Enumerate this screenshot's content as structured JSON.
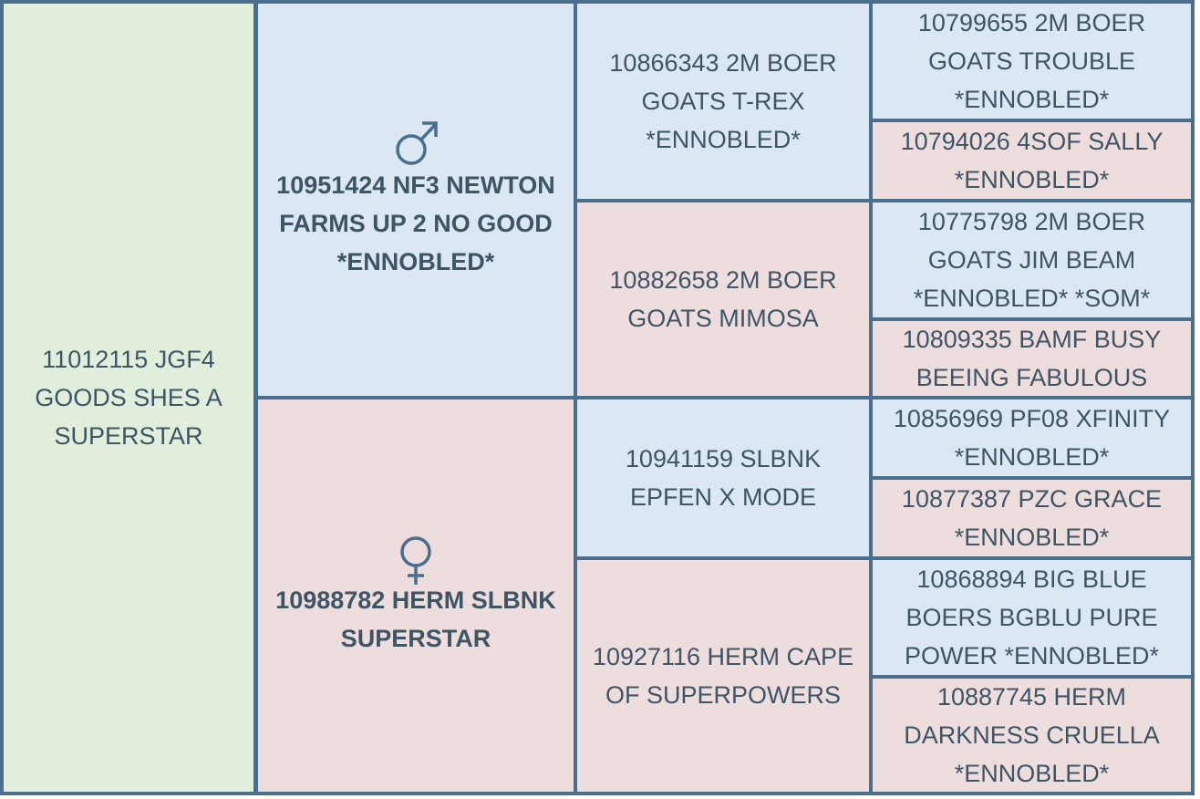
{
  "subject": {
    "name": "11012115 JGF4 GOODS SHES A SUPERSTAR"
  },
  "sire": {
    "symbol_icon": "male-symbol-icon",
    "name": "10951424 NF3 NEWTON FARMS UP 2 NO GOOD *ENNOBLED*",
    "sire": {
      "name": "10866343 2M BOER GOATS T-REX *ENNOBLED*",
      "sire": {
        "name": "10799655 2M BOER GOATS TROUBLE *ENNOBLED*"
      },
      "dam": {
        "name": "10794026 4SOF SALLY *ENNOBLED*"
      }
    },
    "dam": {
      "name": "10882658 2M BOER GOATS MIMOSA",
      "sire": {
        "name": "10775798 2M BOER GOATS JIM BEAM *ENNOBLED* *SOM*"
      },
      "dam": {
        "name": "10809335 BAMF BUSY BEEING FABULOUS"
      }
    }
  },
  "dam": {
    "symbol_icon": "female-symbol-icon",
    "name": "10988782 HERM SLBNK SUPERSTAR",
    "sire": {
      "name": "10941159 SLBNK EPFEN X MODE",
      "sire": {
        "name": "10856969 PF08 XFINITY *ENNOBLED*"
      },
      "dam": {
        "name": "10877387 PZC GRACE *ENNOBLED*"
      }
    },
    "dam": {
      "name": "10927116 HERM CAPE OF SUPERPOWERS",
      "sire": {
        "name": "10868894 BIG BLUE BOERS BGBLU PURE POWER *ENNOBLED*"
      },
      "dam": {
        "name": "10887745 HERM DARKNESS CRUELLA *ENNOBLED*"
      }
    }
  },
  "colors": {
    "border": "#4a6f8c",
    "male_bg": "#dbe8f4",
    "female_bg": "#eedddd",
    "subject_bg": "#e0eedb",
    "text": "#3e5566"
  }
}
